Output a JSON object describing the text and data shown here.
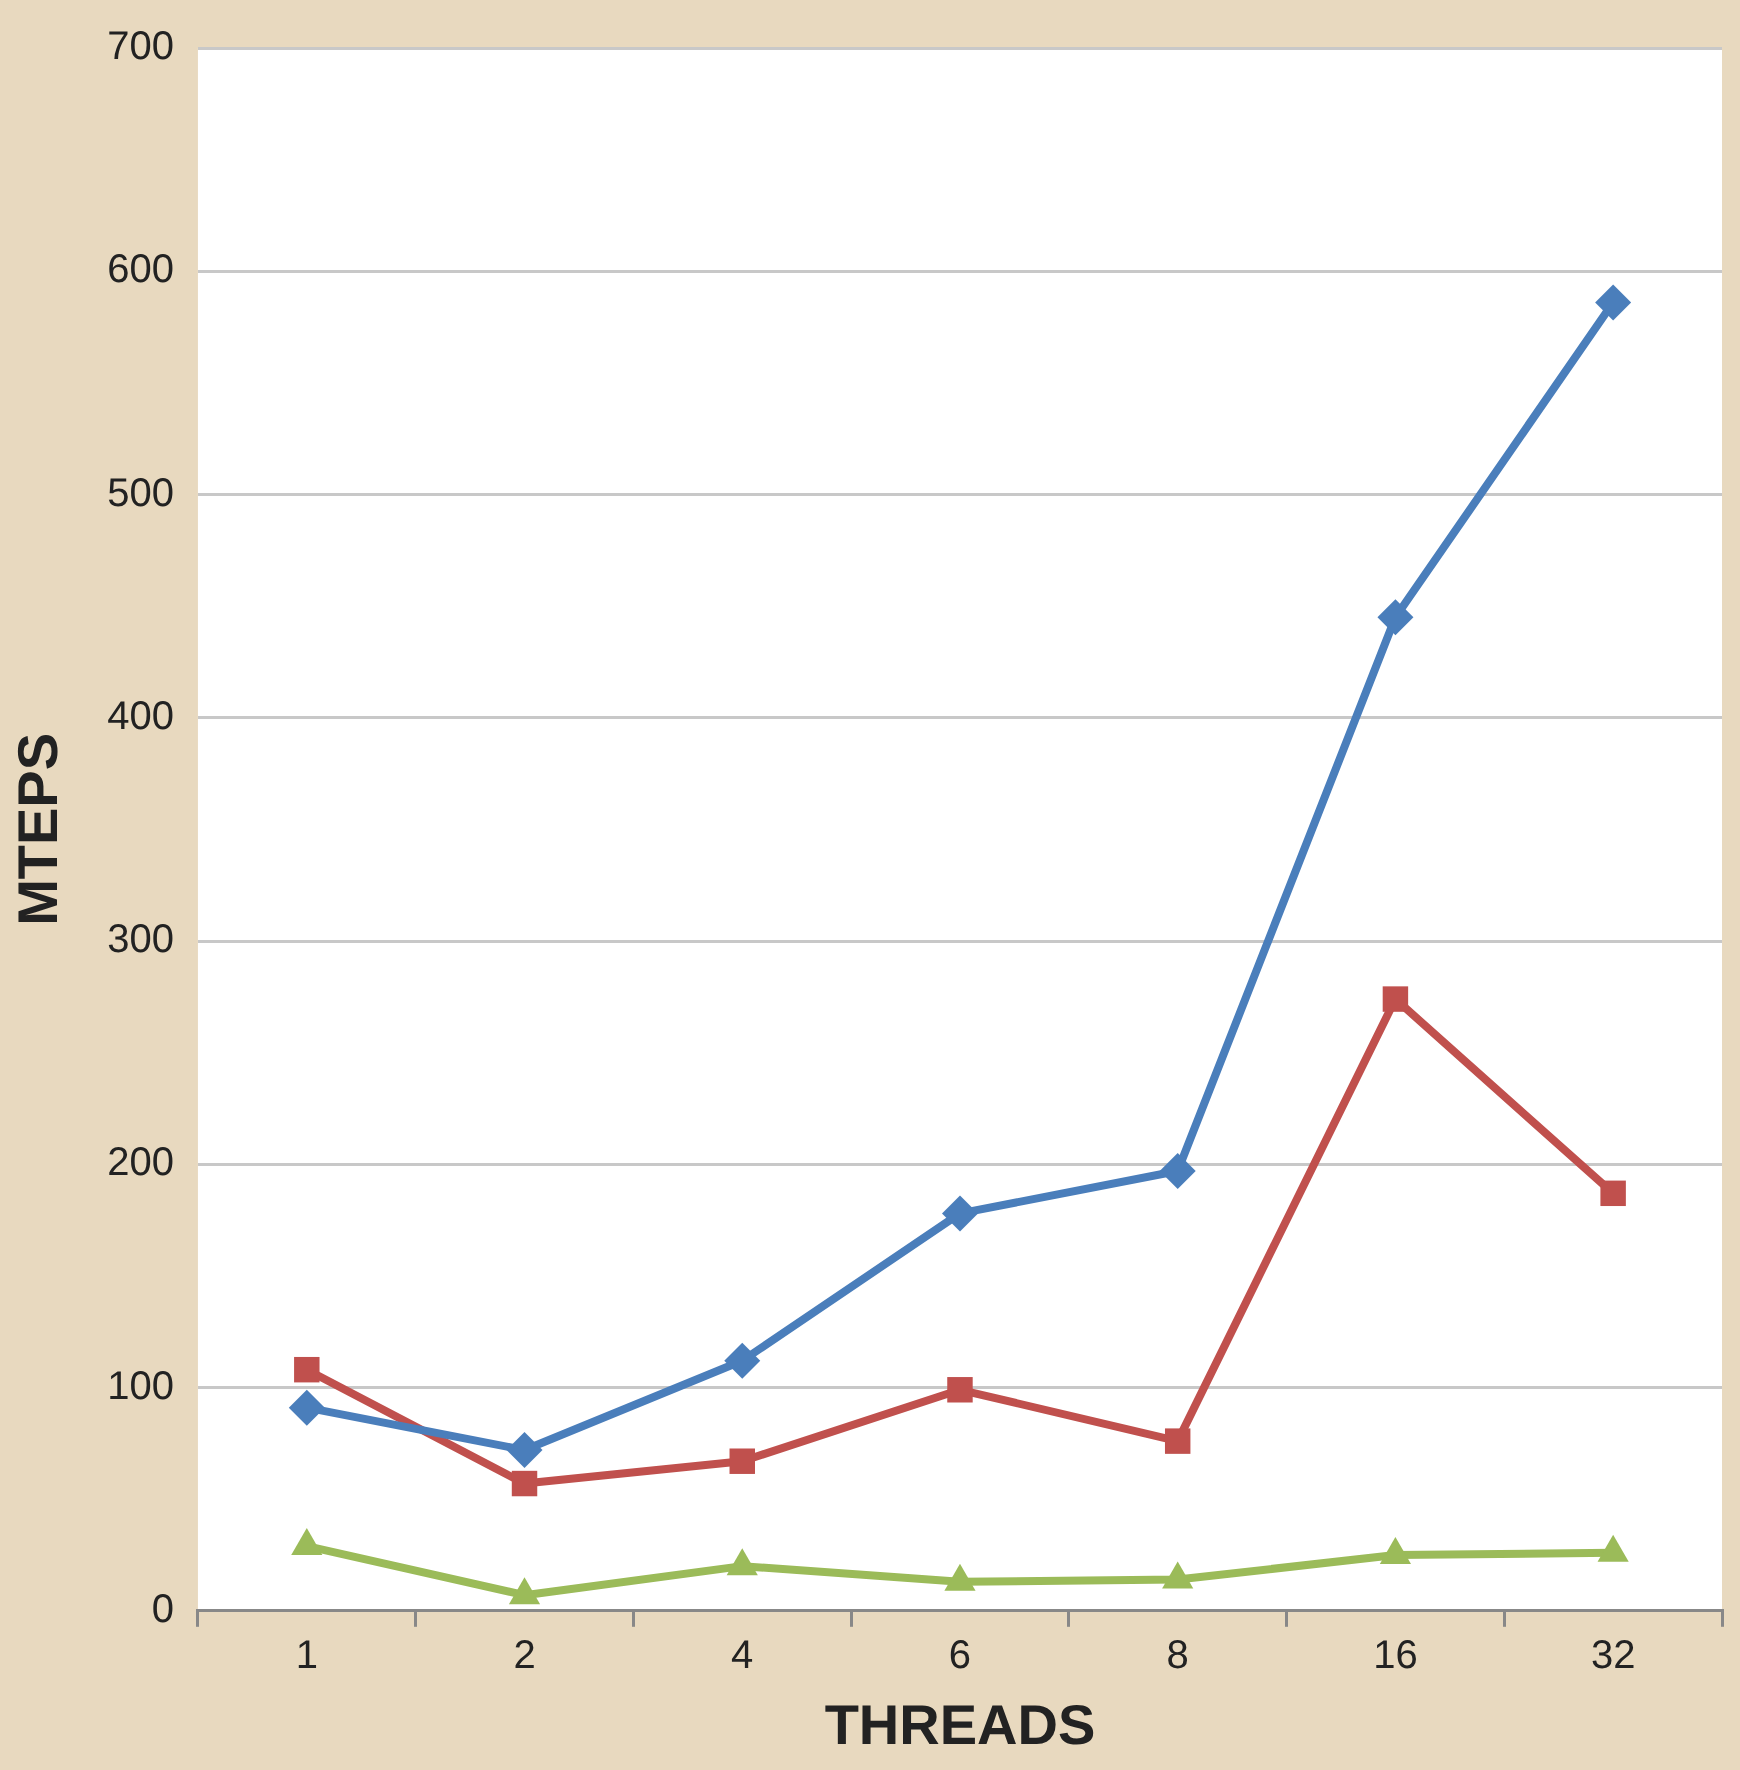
{
  "chart_data": {
    "type": "line",
    "xlabel": "THREADS",
    "ylabel": "MTEPS",
    "categories": [
      "1",
      "2",
      "4",
      "6",
      "8",
      "16",
      "32"
    ],
    "series": [
      {
        "color": "#4a7ebb",
        "marker": "diamond",
        "values": [
          91,
          72,
          112,
          178,
          197,
          445,
          586
        ]
      },
      {
        "color": "#c0504d",
        "marker": "square",
        "values": [
          108,
          57,
          67,
          99,
          76,
          274,
          187
        ]
      },
      {
        "color": "#9bbb59",
        "marker": "triangle",
        "values": [
          29,
          7,
          20,
          13,
          14,
          25,
          26
        ]
      }
    ],
    "ylim": [
      0,
      700
    ],
    "yticks": [
      0,
      100,
      200,
      300,
      400,
      500,
      600,
      700
    ],
    "grid": "y",
    "legend": false
  }
}
